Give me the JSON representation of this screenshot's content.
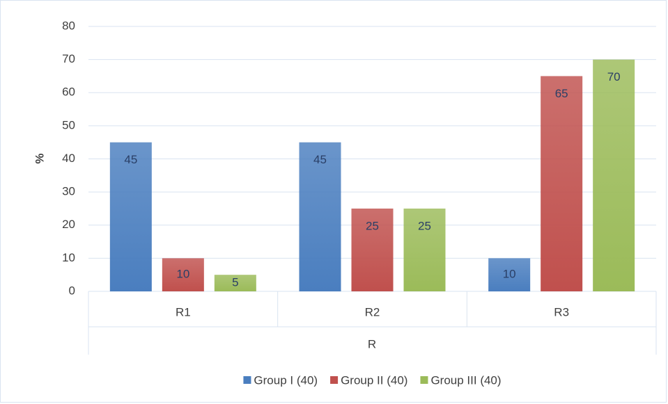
{
  "chart_data": {
    "type": "bar",
    "categories": [
      "R1",
      "R2",
      "R3"
    ],
    "series": [
      {
        "name": "Group I (40)",
        "color": "#4a7ebf",
        "values": [
          45,
          45,
          10
        ]
      },
      {
        "name": "Group II (40)",
        "color": "#c0504d",
        "values": [
          10,
          25,
          65
        ]
      },
      {
        "name": "Group III (40)",
        "color": "#9bbb59",
        "values": [
          5,
          25,
          70
        ]
      }
    ],
    "x_label": "R",
    "y_label": "%",
    "ylim": [
      0,
      80
    ],
    "yticks": [
      0,
      10,
      20,
      30,
      40,
      50,
      60,
      70,
      80
    ],
    "grid": true,
    "legend": "bottom"
  }
}
